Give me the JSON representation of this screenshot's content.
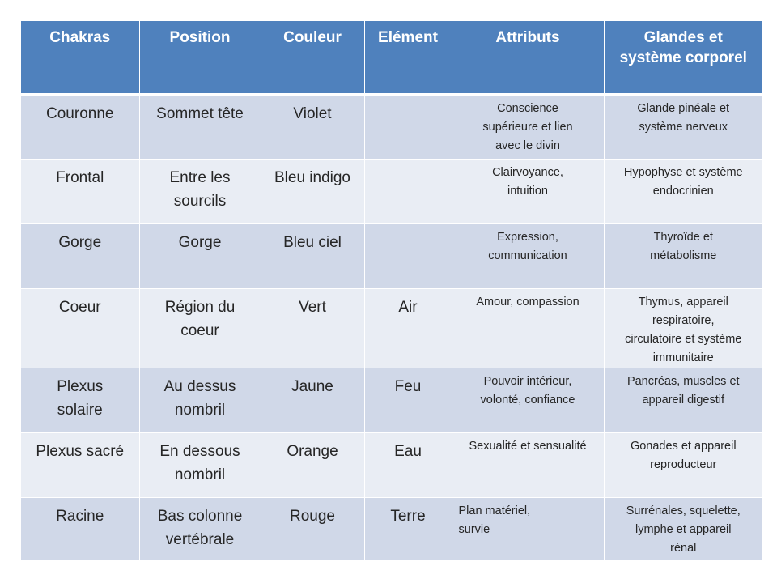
{
  "headers": [
    "Chakras",
    "Position",
    "Couleur",
    "Elément",
    "Attributs",
    "Glandes et\nsystème corporel"
  ],
  "rows": [
    {
      "chakra": "Couronne",
      "position": "Sommet tête",
      "couleur": "Violet",
      "element": "",
      "attributs": "Conscience\nsupérieure et lien\navec le divin",
      "glandes": "Glande pinéale et\nsystème nerveux"
    },
    {
      "chakra": "Frontal",
      "position": "Entre les\nsourcils",
      "couleur": "Bleu indigo",
      "element": "",
      "attributs": "Clairvoyance,\nintuition",
      "glandes": "Hypophyse et système\nendocrinien"
    },
    {
      "chakra": "Gorge",
      "position": "Gorge",
      "couleur": "Bleu ciel",
      "element": "",
      "attributs": "Expression,\ncommunication",
      "glandes": "Thyroïde et\nmétabolisme"
    },
    {
      "chakra": "Coeur",
      "position": "Région du\ncoeur",
      "couleur": "Vert",
      "element": "Air",
      "attributs": "Amour, compassion",
      "glandes": "Thymus, appareil\nrespiratoire,\ncirculatoire et système\nimmunitaire"
    },
    {
      "chakra": "Plexus\nsolaire",
      "position": "Au dessus\nnombril",
      "couleur": "Jaune",
      "element": "Feu",
      "attributs": "Pouvoir intérieur,\nvolonté, confiance",
      "glandes": "Pancréas, muscles et\nappareil digestif"
    },
    {
      "chakra": "Plexus sacré",
      "position": "En dessous\nnombril",
      "couleur": "Orange",
      "element": "Eau",
      "attributs": "Sexualité et sensualité",
      "glandes": "Gonades et appareil\nreproducteur"
    },
    {
      "chakra": "Racine",
      "position": "Bas colonne\nvertébrale",
      "couleur": "Rouge",
      "element": "Terre",
      "attributs": "Plan matériel,\nsurvie",
      "glandes": "Surrénales, squelette,\nlymphe et appareil\nrénal"
    }
  ],
  "colors": {
    "header_bg": "#4f81bd",
    "header_text": "#ffffff",
    "row_dark": "#d0d8e8",
    "row_light": "#e9edf4",
    "body_text": "#262626"
  }
}
